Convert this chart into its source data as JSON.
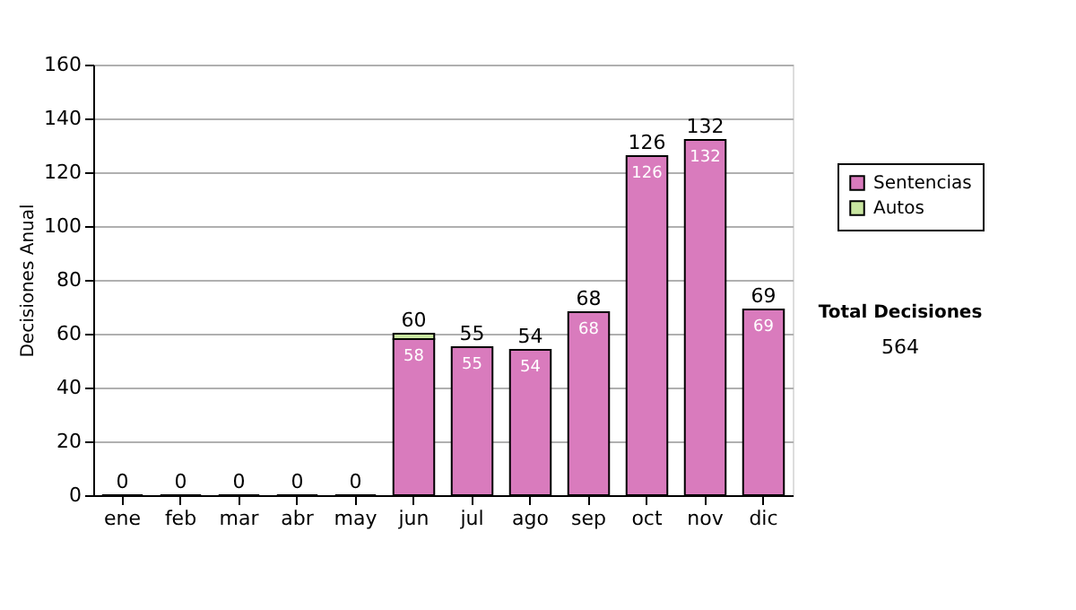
{
  "chart_data": {
    "type": "bar",
    "stacked": true,
    "ylabel": "Decisiones Anual",
    "categories": [
      "ene",
      "feb",
      "mar",
      "abr",
      "may",
      "jun",
      "jul",
      "ago",
      "sep",
      "oct",
      "nov",
      "dic"
    ],
    "series": [
      {
        "name": "Sentencias",
        "color": "#d97bbd",
        "values": [
          0,
          0,
          0,
          0,
          0,
          58,
          55,
          54,
          68,
          126,
          132,
          69
        ],
        "value_labels": [
          null,
          null,
          null,
          null,
          null,
          "58",
          "55",
          "54",
          "68",
          "126",
          "132",
          "69"
        ]
      },
      {
        "name": "Autos",
        "color": "#c9e6a1",
        "values": [
          null,
          null,
          null,
          null,
          null,
          2,
          null,
          null,
          null,
          null,
          null,
          null
        ]
      }
    ],
    "totals": [
      "0",
      "0",
      "0",
      "0",
      "0",
      "60",
      "55",
      "54",
      "68",
      "126",
      "132",
      "69"
    ],
    "ylim": [
      0,
      160
    ],
    "yticks": [
      0,
      20,
      40,
      60,
      80,
      100,
      120,
      140,
      160
    ],
    "grid": "y",
    "legend": "right",
    "annotations": [
      "Total Decisiones",
      "564"
    ]
  }
}
